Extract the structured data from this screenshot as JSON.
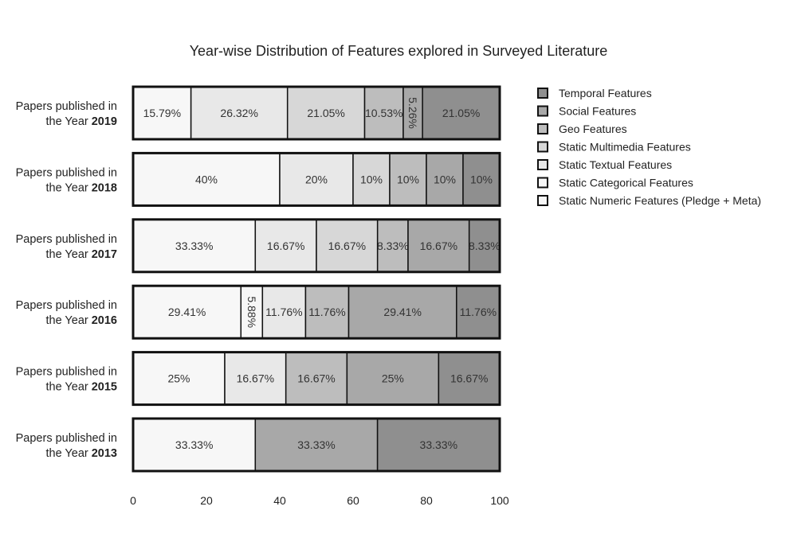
{
  "chart_data": {
    "type": "bar",
    "orientation": "horizontal",
    "stacked": true,
    "title": "Year-wise Distribution of Features explored in Surveyed Literature",
    "xlim": [
      0,
      100
    ],
    "xticks": [
      "0",
      "20",
      "40",
      "60",
      "80",
      "100"
    ],
    "categories": [
      {
        "prefix": "Papers published in",
        "mid": "the Year",
        "year": "2019"
      },
      {
        "prefix": "Papers published in",
        "mid": "the Year",
        "year": "2018"
      },
      {
        "prefix": "Papers published in",
        "mid": "the Year",
        "year": "2017"
      },
      {
        "prefix": "Papers published in",
        "mid": "the Year",
        "year": "2016"
      },
      {
        "prefix": "Papers published in",
        "mid": "the Year",
        "year": "2015"
      },
      {
        "prefix": "Papers published in",
        "mid": "the Year",
        "year": "2013"
      }
    ],
    "series": [
      {
        "name": "Static Numeric Features (Pledge + Meta)",
        "color": "#f7f7f7",
        "values": [
          15.79,
          40,
          33.33,
          29.41,
          25,
          33.33
        ],
        "labels": [
          "15.79%",
          "40%",
          "33.33%",
          "29.41%",
          "25%",
          "33.33%"
        ]
      },
      {
        "name": "Static Categorical Features",
        "color": "#f7f7f7",
        "values": [
          0,
          0,
          0,
          5.88,
          0,
          0
        ],
        "labels": [
          "",
          "",
          "",
          "5.88%",
          "",
          ""
        ]
      },
      {
        "name": "Static Textual Features",
        "color": "#e8e8e8",
        "values": [
          26.32,
          20,
          16.67,
          11.76,
          16.67,
          0
        ],
        "labels": [
          "26.32%",
          "20%",
          "16.67%",
          "11.76%",
          "16.67%",
          ""
        ]
      },
      {
        "name": "Static Multimedia Features",
        "color": "#d7d7d7",
        "values": [
          21.05,
          10,
          16.67,
          0,
          0,
          0
        ],
        "labels": [
          "21.05%",
          "10%",
          "16.67%",
          "",
          "",
          ""
        ]
      },
      {
        "name": "Geo Features",
        "color": "#bdbdbd",
        "values": [
          10.53,
          10,
          8.33,
          11.76,
          16.67,
          0
        ],
        "labels": [
          "10.53%",
          "10%",
          "8.33%",
          "11.76%",
          "16.67%",
          ""
        ]
      },
      {
        "name": "Social Features",
        "color": "#a8a8a8",
        "values": [
          5.26,
          10,
          16.67,
          29.41,
          25,
          33.33
        ],
        "labels": [
          "5.26%",
          "10%",
          "16.67%",
          "29.41%",
          "25%",
          "33.33%"
        ]
      },
      {
        "name": "Temporal Features",
        "color": "#8f8f8f",
        "values": [
          21.05,
          10,
          8.33,
          11.76,
          16.67,
          33.33
        ],
        "labels": [
          "21.05%",
          "10%",
          "8.33%",
          "11.76%",
          "16.67%",
          "33.33%"
        ]
      }
    ],
    "legend_order": [
      "Temporal Features",
      "Social Features",
      "Geo Features",
      "Static Multimedia Features",
      "Static Textual Features",
      "Static Categorical Features",
      "Static Numeric Features (Pledge + Meta)"
    ],
    "legend_position": "right",
    "grid": false
  }
}
